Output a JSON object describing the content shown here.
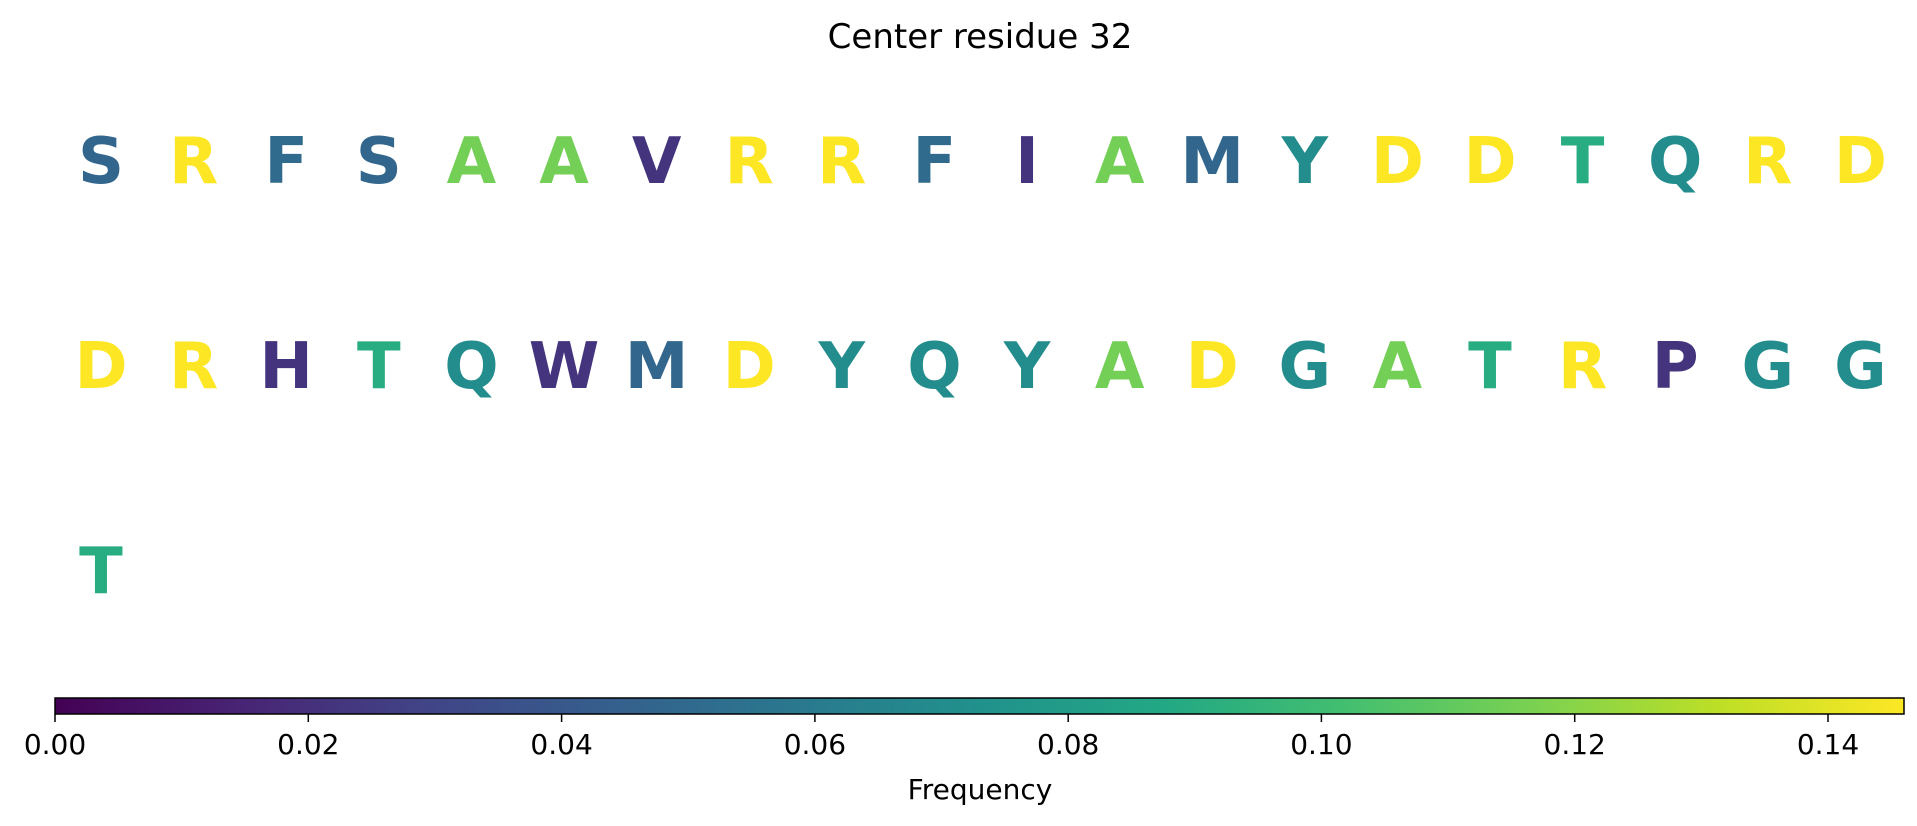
{
  "chart_data": {
    "type": "heatmap",
    "title": "Center residue 32",
    "colorbar": {
      "label": "Frequency",
      "range": [
        0,
        0.146
      ],
      "ticks": [
        0.0,
        0.02,
        0.04,
        0.06,
        0.08,
        0.1,
        0.12,
        0.14
      ],
      "tick_labels": [
        "0.00",
        "0.02",
        "0.04",
        "0.06",
        "0.08",
        "0.10",
        "0.12",
        "0.14"
      ],
      "colormap": "viridis",
      "colormap_stops": [
        "#440154",
        "#482475",
        "#414487",
        "#355f8d",
        "#2a788e",
        "#21918c",
        "#22a884",
        "#44bf70",
        "#7ad151",
        "#bddf26",
        "#fde725"
      ]
    },
    "columns": 20,
    "residues": [
      {
        "letter": "S",
        "value": 0.048
      },
      {
        "letter": "R",
        "value": 0.146
      },
      {
        "letter": "F",
        "value": 0.05
      },
      {
        "letter": "S",
        "value": 0.048
      },
      {
        "letter": "A",
        "value": 0.115
      },
      {
        "letter": "A",
        "value": 0.115
      },
      {
        "letter": "V",
        "value": 0.022
      },
      {
        "letter": "R",
        "value": 0.146
      },
      {
        "letter": "R",
        "value": 0.146
      },
      {
        "letter": "F",
        "value": 0.05
      },
      {
        "letter": "I",
        "value": 0.022
      },
      {
        "letter": "A",
        "value": 0.115
      },
      {
        "letter": "M",
        "value": 0.048
      },
      {
        "letter": "Y",
        "value": 0.07
      },
      {
        "letter": "D",
        "value": 0.146
      },
      {
        "letter": "D",
        "value": 0.146
      },
      {
        "letter": "T",
        "value": 0.09
      },
      {
        "letter": "Q",
        "value": 0.07
      },
      {
        "letter": "R",
        "value": 0.146
      },
      {
        "letter": "D",
        "value": 0.146
      },
      {
        "letter": "D",
        "value": 0.146
      },
      {
        "letter": "R",
        "value": 0.146
      },
      {
        "letter": "H",
        "value": 0.022
      },
      {
        "letter": "T",
        "value": 0.09
      },
      {
        "letter": "Q",
        "value": 0.07
      },
      {
        "letter": "W",
        "value": 0.022
      },
      {
        "letter": "M",
        "value": 0.048
      },
      {
        "letter": "D",
        "value": 0.146
      },
      {
        "letter": "Y",
        "value": 0.07
      },
      {
        "letter": "Q",
        "value": 0.07
      },
      {
        "letter": "Y",
        "value": 0.07
      },
      {
        "letter": "A",
        "value": 0.115
      },
      {
        "letter": "D",
        "value": 0.146
      },
      {
        "letter": "G",
        "value": 0.07
      },
      {
        "letter": "A",
        "value": 0.115
      },
      {
        "letter": "T",
        "value": 0.09
      },
      {
        "letter": "R",
        "value": 0.146
      },
      {
        "letter": "P",
        "value": 0.022
      },
      {
        "letter": "G",
        "value": 0.07
      },
      {
        "letter": "G",
        "value": 0.07
      },
      {
        "letter": "T",
        "value": 0.09
      }
    ]
  }
}
